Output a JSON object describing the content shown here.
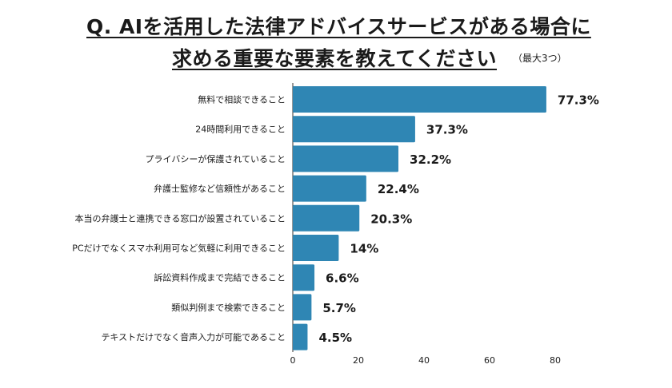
{
  "title_line1": "Q. AIを活用した法律アドバイスサービスがある場合に",
  "title_line2": "求める重要な要素を教えてください",
  "subtitle": "（最大3つ）",
  "chart_data": {
    "type": "bar",
    "orientation": "horizontal",
    "title": "Q. AIを活用した法律アドバイスサービスがある場合に求める重要な要素を教えてください",
    "subtitle": "（最大3つ）",
    "categories": [
      "無料で相談できること",
      "24時間利用できること",
      "プライバシーが保護されていること",
      "弁護士監修など信頼性があること",
      "本当の弁護士と連携できる窓口が設置されていること",
      "PCだけでなくスマホ利用可など気軽に利用できること",
      "訴訟資料作成まで完結できること",
      "類似判例まで検索できること",
      "テキストだけでなく音声入力が可能であること"
    ],
    "values": [
      77.3,
      37.3,
      32.2,
      22.4,
      20.3,
      14,
      6.6,
      5.7,
      4.5
    ],
    "value_labels": [
      "77.3%",
      "37.3%",
      "32.2%",
      "22.4%",
      "20.3%",
      "14%",
      "6.6%",
      "5.7%",
      "4.5%"
    ],
    "xlim": [
      0,
      80
    ],
    "xticks": [
      0,
      20,
      40,
      60,
      80
    ],
    "xtick_labels": [
      "0",
      "20",
      "40",
      "60",
      "80"
    ],
    "xlabel": "",
    "ylabel": "",
    "bar_color": "#2f86b4",
    "grid": false
  }
}
